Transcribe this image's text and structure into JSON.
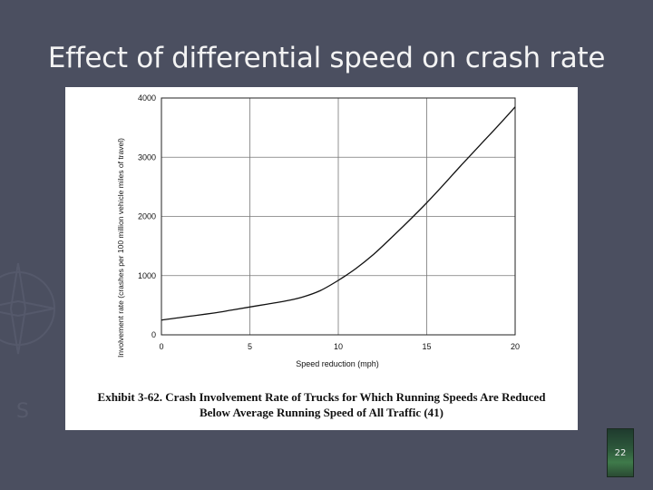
{
  "slide": {
    "title": "Effect of differential speed on crash rate",
    "number": "22"
  },
  "figure": {
    "caption_line1": "Exhibit 3-62.  Crash Involvement Rate of Trucks for Which Running Speeds Are Reduced",
    "caption_line2": "Below Average Running Speed of All Traffic (41)"
  },
  "chart_data": {
    "type": "line",
    "title": "",
    "xlabel": "Speed reduction (mph)",
    "ylabel": "Involvement rate (crashes per 100 million vehicle miles of travel)",
    "xlim": [
      0,
      20
    ],
    "ylim": [
      0,
      4000
    ],
    "xticks": [
      0,
      5,
      10,
      15,
      20
    ],
    "yticks": [
      0,
      1000,
      2000,
      3000,
      4000
    ],
    "grid": true,
    "series": [
      {
        "x": [
          0,
          1,
          2,
          3,
          4,
          5,
          6,
          7,
          8,
          9,
          10,
          11,
          12,
          13,
          14,
          15,
          16,
          17,
          18,
          19,
          20
        ],
        "y": [
          250,
          290,
          330,
          370,
          420,
          470,
          520,
          570,
          640,
          750,
          920,
          1120,
          1360,
          1640,
          1930,
          2230,
          2550,
          2880,
          3200,
          3520,
          3850
        ]
      }
    ],
    "colors": {
      "line": "#111111",
      "grid": "#777777"
    }
  },
  "decoration": {
    "icon": "faint-compass-watermark"
  }
}
